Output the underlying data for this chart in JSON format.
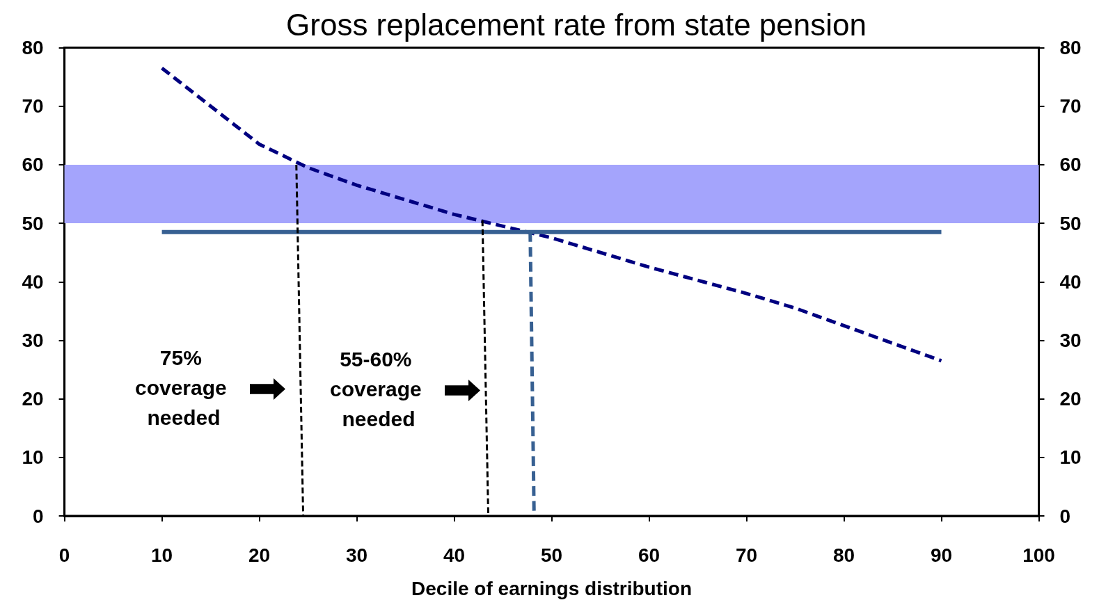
{
  "chart_data": {
    "type": "line",
    "title": "Gross replacement rate from state pension",
    "xlabel": "Decile of earnings distribution",
    "xlim": [
      0,
      100
    ],
    "xticks": [
      0,
      10,
      20,
      30,
      40,
      50,
      60,
      70,
      80,
      90,
      100
    ],
    "ylim": [
      0,
      80
    ],
    "yticks": [
      0,
      10,
      20,
      30,
      40,
      50,
      60,
      70,
      80
    ],
    "y2lim": [
      0,
      80
    ],
    "y2ticks": [
      0,
      10,
      20,
      30,
      40,
      50,
      60,
      70,
      80
    ],
    "grid": false,
    "marker": "none",
    "series": [
      {
        "x": [
          10,
          20,
          25,
          30,
          40,
          50,
          60,
          70,
          75,
          80,
          90
        ],
        "values": [
          76.5,
          63.5,
          59.5,
          56.5,
          51.5,
          47.5,
          42.5,
          38,
          35.5,
          32.5,
          26.5
        ],
        "color": "#000080",
        "line_style": "dashed"
      },
      {
        "x": [
          10,
          90
        ],
        "values": [
          48.5,
          48.5
        ],
        "color": "#376092",
        "line_style": "solid"
      },
      {
        "x": [
          23.8,
          24.5
        ],
        "values": [
          60,
          0
        ],
        "color": "#000000",
        "line_style": "dashed"
      },
      {
        "x": [
          42.9,
          43.5
        ],
        "values": [
          50.5,
          0
        ],
        "color": "#000000",
        "line_style": "dashed"
      },
      {
        "x": [
          47.8,
          48.2
        ],
        "values": [
          48.5,
          0
        ],
        "color": "#376092",
        "line_style": "dashed"
      }
    ],
    "bands": [
      {
        "axis": "y",
        "from": 50,
        "to": 60,
        "color": "#a4a4fc"
      }
    ],
    "annotations": [
      "75% coverage needed",
      "55-60% coverage needed"
    ]
  }
}
